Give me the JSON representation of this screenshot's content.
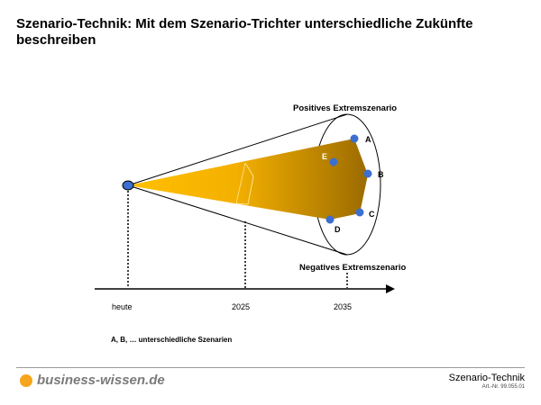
{
  "title": "Szenario-Technik: Mit dem Szenario-Trichter unterschiedliche Zukünfte beschreiben",
  "labels": {
    "positive": "Positives Extremszenario",
    "negative": "Negatives Extremszenario"
  },
  "scenarios": [
    "A",
    "B",
    "C",
    "D",
    "E"
  ],
  "timeline": [
    "heute",
    "2025",
    "2035"
  ],
  "legend": "A, B, … unterschiedliche Szenarien",
  "footer": {
    "logo": "business-wissen.de",
    "title": "Szenario-Technik",
    "art": "Art.-Nr. 99.055.01"
  },
  "colors": {
    "cone_light": "#ffc000",
    "cone_dark": "#9a6a00",
    "point": "#3c6fd0",
    "logo_dot": "#f7a51c"
  }
}
